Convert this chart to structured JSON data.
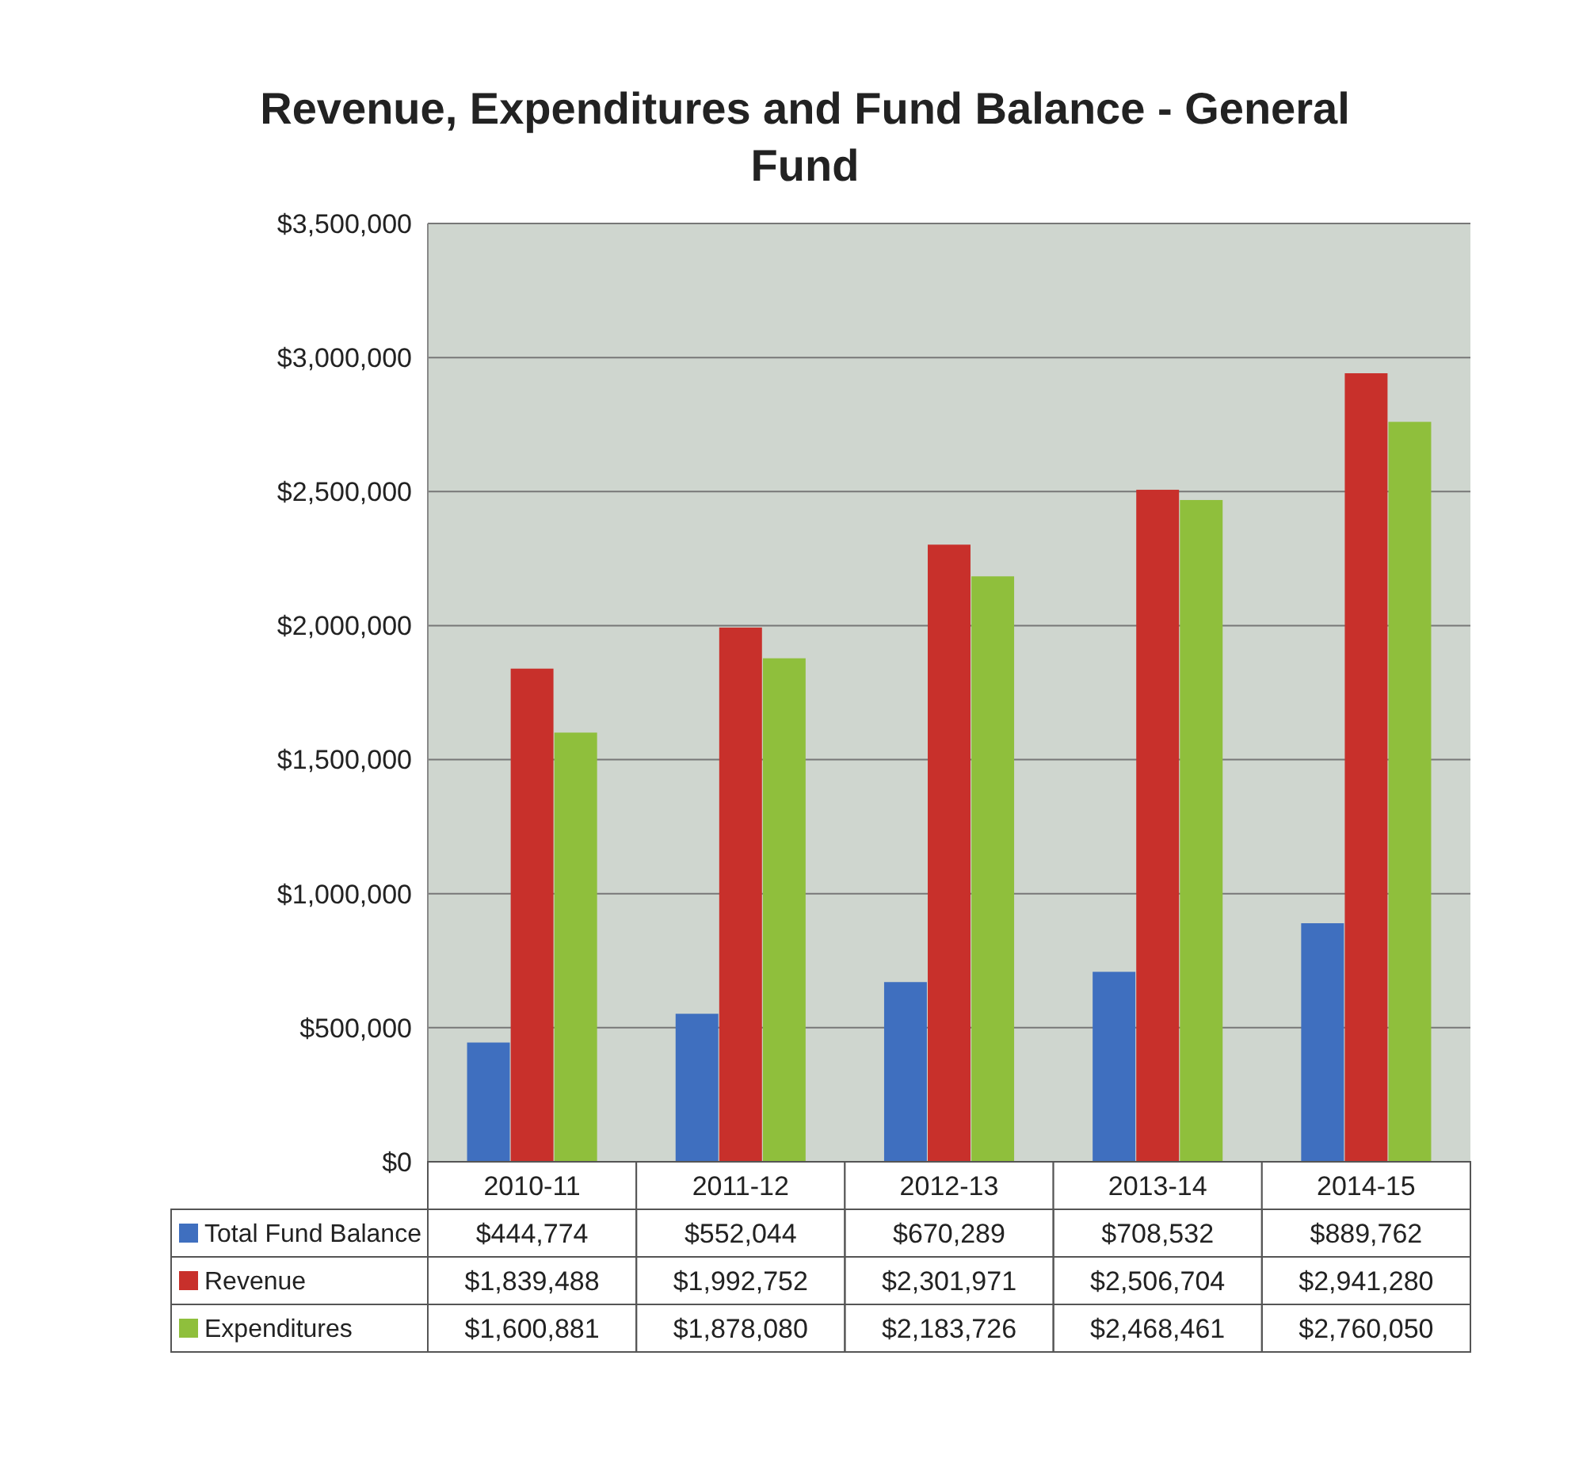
{
  "chart_data": {
    "type": "bar",
    "title": "Revenue, Expenditures and Fund Balance - General Fund",
    "categories": [
      "2010-11",
      "2011-12",
      "2012-13",
      "2013-14",
      "2014-15"
    ],
    "series": [
      {
        "name": "Total Fund Balance",
        "color": "#3f6fbf",
        "values": [
          444774,
          552044,
          670289,
          708532,
          889762
        ],
        "value_labels": [
          "$444,774",
          "$552,044",
          "$670,289",
          "$708,532",
          "$889,762"
        ]
      },
      {
        "name": "Revenue",
        "color": "#c8302b",
        "values": [
          1839488,
          1992752,
          2301971,
          2506704,
          2941280
        ],
        "value_labels": [
          "$1,839,488",
          "$1,992,752",
          "$2,301,971",
          "$2,506,704",
          "$2,941,280"
        ]
      },
      {
        "name": "Expenditures",
        "color": "#8fbf3c",
        "values": [
          1600881,
          1878080,
          2183726,
          2468461,
          2760050
        ],
        "value_labels": [
          "$1,600,881",
          "$1,878,080",
          "$2,183,726",
          "$2,468,461",
          "$2,760,050"
        ]
      }
    ],
    "ylim": [
      0,
      3500000
    ],
    "yticks": [
      {
        "value": 0,
        "label": "$0"
      },
      {
        "value": 500000,
        "label": "$500,000"
      },
      {
        "value": 1000000,
        "label": "$1,000,000"
      },
      {
        "value": 1500000,
        "label": "$1,500,000"
      },
      {
        "value": 2000000,
        "label": "$2,000,000"
      },
      {
        "value": 2500000,
        "label": "$2,500,000"
      },
      {
        "value": 3000000,
        "label": "$3,000,000"
      },
      {
        "value": 3500000,
        "label": "$3,500,000"
      }
    ],
    "grid": "y",
    "legend": "bottom"
  }
}
